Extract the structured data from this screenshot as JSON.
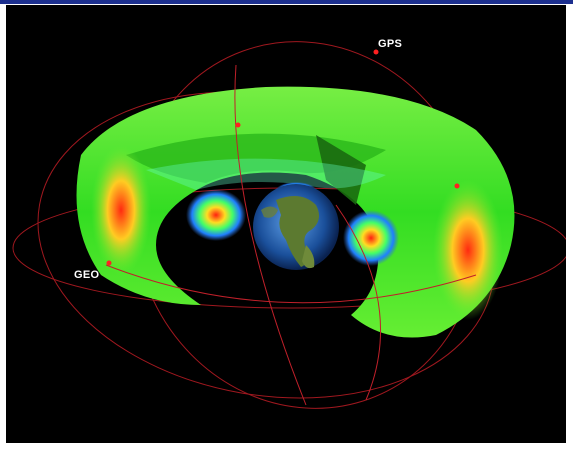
{
  "labels": {
    "gps": "GPS",
    "geo": "GEO"
  },
  "colors": {
    "frame_top": "#1c2f8f",
    "space": "#000000",
    "outer_belt": "#55ee33",
    "belt_core": "#ff2a10",
    "inner_belt": "#33aaff",
    "orbit": "#c0202a",
    "satellite": "#ff2020"
  },
  "icons": {
    "earth": "earth-globe",
    "satellites": "orbit-marker"
  }
}
